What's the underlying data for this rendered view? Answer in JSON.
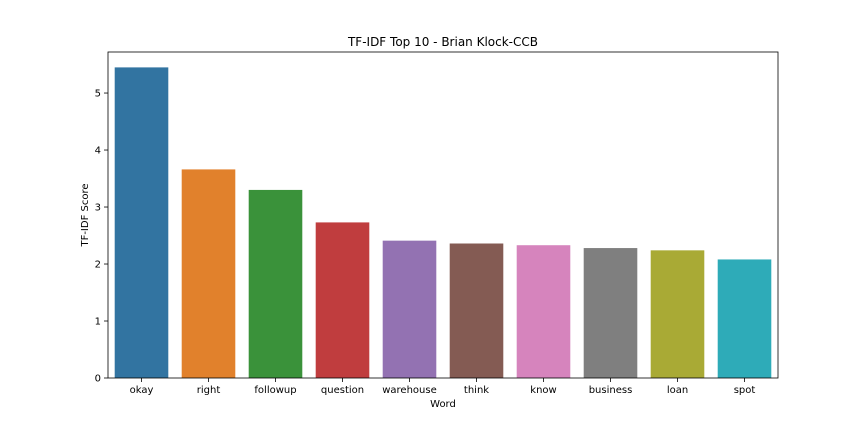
{
  "chart_data": {
    "type": "bar",
    "title": "TF-IDF Top 10 - Brian Klock-CCB",
    "xlabel": "Word",
    "ylabel": "TF-IDF Score",
    "categories": [
      "okay",
      "right",
      "followup",
      "question",
      "warehouse",
      "think",
      "know",
      "business",
      "loan",
      "spot"
    ],
    "values": [
      5.45,
      3.66,
      3.3,
      2.73,
      2.41,
      2.36,
      2.33,
      2.28,
      2.24,
      2.08
    ],
    "colors": [
      "#3274a1",
      "#e1812c",
      "#3a923a",
      "#c03d3e",
      "#9372b2",
      "#845b53",
      "#d684bd",
      "#7f7f7f",
      "#a9aa35",
      "#2eabb8"
    ],
    "yticks": [
      "0",
      "1",
      "2",
      "3",
      "4",
      "5"
    ],
    "ylim": [
      0,
      5.72
    ],
    "grid": false,
    "legend": "none"
  }
}
